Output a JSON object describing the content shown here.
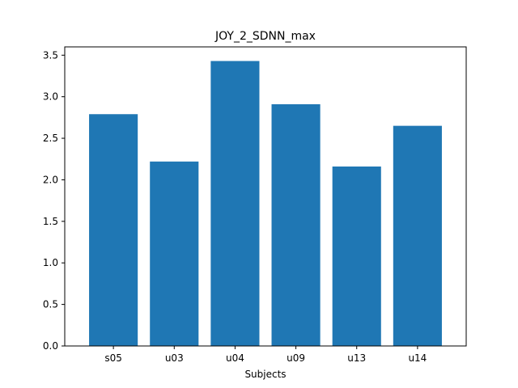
{
  "chart_data": {
    "type": "bar",
    "title": "JOY_2_SDNN_max",
    "xlabel": "Subjects",
    "ylabel": "",
    "categories": [
      "s05",
      "u03",
      "u04",
      "u09",
      "u13",
      "u14"
    ],
    "values": [
      2.79,
      2.22,
      3.43,
      2.91,
      2.16,
      2.65
    ],
    "ylim": [
      0,
      3.6
    ],
    "yticks": [
      "0.0",
      "0.5",
      "1.0",
      "1.5",
      "2.0",
      "2.5",
      "3.0",
      "3.5"
    ],
    "grid": false,
    "legend": "none",
    "bar_color": "#1f77b4"
  }
}
